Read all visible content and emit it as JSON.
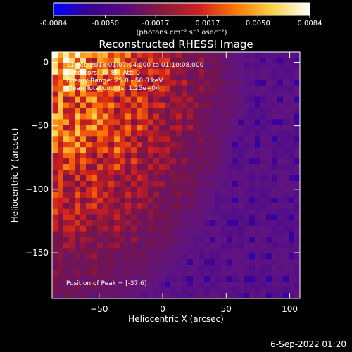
{
  "colorbar": {
    "tick_labels": [
      "-0.0084",
      "-0.0050",
      "-0.0017",
      "0.0017",
      "0.0050",
      "0.0084"
    ],
    "tick_values": [
      -0.0084,
      -0.005,
      -0.0017,
      0.0017,
      0.005,
      0.0084
    ],
    "range": [
      -0.0084,
      0.0084
    ],
    "units_label": "(photons cm⁻² s⁻¹ asec⁻²)",
    "colormap": [
      "#0000ff",
      "#3a0090",
      "#5a0a7a",
      "#8b1a3a",
      "#d02020",
      "#ff7a00",
      "#ffd24a",
      "#ffffff"
    ]
  },
  "info": {
    "time_range": "11-Feb-2018 01:07:04.000 to 01:10:08.000",
    "detectors": "Detectors: 3F 8F; Att: 0",
    "energy": "Energy Range: 25.0 - 50.0 keV",
    "method": "Clean     Total counts: 1.25e+04",
    "peak": "Position of Peak = [-37,6]"
  },
  "footer": {
    "timestamp": "6-Sep-2022 01:20"
  },
  "chart_data": {
    "type": "heatmap",
    "title": "Reconstructed RHESSI Image",
    "xlabel": "Heliocentric X (arcsec)",
    "ylabel": "Heliocentric Y (arcsec)",
    "xlim": [
      -87,
      108
    ],
    "ylim": [
      -186,
      8
    ],
    "x_ticks": [
      -50,
      0,
      50,
      100
    ],
    "y_ticks": [
      0,
      -50,
      -100,
      -150
    ],
    "x_tick_labels": [
      "−50",
      "0",
      "50",
      "100"
    ],
    "y_tick_labels": [
      "0",
      "−50",
      "−100",
      "−150"
    ],
    "peak_position": [
      -37,
      6
    ]
  }
}
